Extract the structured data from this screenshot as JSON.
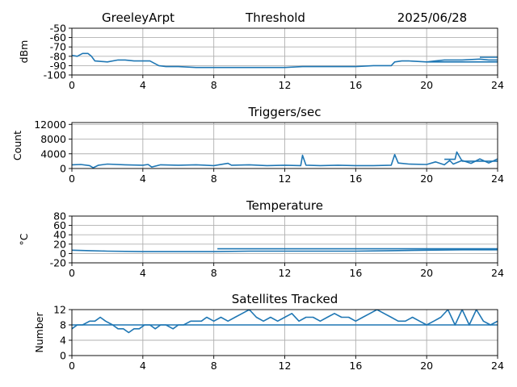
{
  "header": {
    "station": "GreeleyArpt",
    "plot_name": "Threshold",
    "date": "2025/06/28"
  },
  "chart_data": [
    {
      "id": "threshold",
      "type": "line",
      "title": "",
      "xlabel": "",
      "ylabel": "dBm",
      "xlim": [
        0,
        24
      ],
      "ylim": [
        -100,
        -50
      ],
      "xticks": [
        0,
        4,
        8,
        12,
        16,
        20,
        24
      ],
      "yticks": [
        -100,
        -90,
        -80,
        -70,
        -60,
        -50
      ],
      "grid": true,
      "series": [
        {
          "x": [
            0,
            0.3,
            0.6,
            0.9,
            1.1,
            1.3,
            2,
            2.6,
            3,
            3.5,
            4,
            4.4,
            4.6,
            4.9,
            5.3,
            6,
            7,
            8,
            10,
            12,
            13,
            14,
            16,
            17,
            18,
            18.2,
            18.6,
            19,
            20,
            20.5,
            21,
            22,
            23,
            23.5,
            24
          ],
          "y": [
            -79,
            -80,
            -77,
            -77,
            -80,
            -85,
            -86,
            -84,
            -84,
            -85,
            -85,
            -85,
            -87,
            -90,
            -91,
            -91,
            -92,
            -92,
            -92,
            -92,
            -91,
            -91,
            -91,
            -90,
            -90,
            -86,
            -85,
            -85,
            -86,
            -85,
            -84,
            -84,
            -83,
            -84,
            -84
          ]
        },
        {
          "x": [
            20,
            21,
            22,
            23,
            24
          ],
          "y": [
            -86,
            -86,
            -86,
            -86,
            -86
          ]
        },
        {
          "x": [
            23,
            23.5,
            24
          ],
          "y": [
            -81,
            -81,
            -81
          ]
        }
      ]
    },
    {
      "id": "triggers",
      "type": "line",
      "title": "Triggers/sec",
      "xlabel": "",
      "ylabel": "Count",
      "xlim": [
        0,
        24
      ],
      "ylim": [
        0,
        12500
      ],
      "xticks": [
        0,
        4,
        8,
        12,
        16,
        20,
        24
      ],
      "yticks": [
        0,
        4000,
        8000,
        12000
      ],
      "grid": true,
      "series": [
        {
          "x": [
            0,
            0.5,
            1,
            1.2,
            1.5,
            2,
            3,
            4,
            4.3,
            4.5,
            5,
            6,
            7,
            8,
            8.8,
            9,
            10,
            11,
            12,
            12.9,
            13,
            13.2,
            14,
            15,
            16,
            17,
            18,
            18.2,
            18.4,
            19,
            20,
            20.5,
            21,
            21.3,
            21.5,
            22,
            22.5,
            23,
            23.5,
            24
          ],
          "y": [
            1000,
            1100,
            800,
            200,
            900,
            1200,
            1000,
            900,
            1100,
            400,
            1000,
            900,
            1000,
            800,
            1400,
            900,
            1000,
            800,
            900,
            800,
            3600,
            900,
            800,
            900,
            800,
            800,
            900,
            3800,
            1500,
            1200,
            1100,
            1800,
            1000,
            2200,
            1200,
            2200,
            1400,
            2600,
            1500,
            2600
          ]
        },
        {
          "x": [
            21,
            21.6,
            21.7,
            22,
            24
          ],
          "y": [
            2500,
            2500,
            4500,
            2000,
            2000
          ]
        }
      ]
    },
    {
      "id": "temperature",
      "type": "line",
      "title": "Temperature",
      "xlabel": "",
      "ylabel": "°C",
      "xlim": [
        0,
        24
      ],
      "ylim": [
        -20,
        80
      ],
      "xticks": [
        0,
        4,
        8,
        12,
        16,
        20,
        24
      ],
      "yticks": [
        -20,
        0,
        20,
        40,
        60,
        80
      ],
      "grid": true,
      "series": [
        {
          "x": [
            0,
            1,
            2,
            4,
            6,
            8,
            10,
            12,
            14,
            16,
            18,
            20,
            22,
            24
          ],
          "y": [
            7,
            6,
            5,
            4,
            4,
            4,
            5,
            5,
            5,
            5,
            6,
            7,
            8,
            8
          ]
        },
        {
          "x": [
            8.2,
            9.2,
            9.6,
            9.9,
            10.2,
            10.5,
            11.8,
            12.2,
            12.6,
            13,
            13.4,
            13.8,
            14.2,
            14.6,
            15,
            20.2,
            20.6,
            21,
            21.4,
            21.8,
            23,
            23.5,
            24
          ],
          "y": [
            10,
            10,
            10,
            10,
            10,
            10,
            10,
            10,
            10,
            10,
            10,
            10,
            10,
            10,
            10,
            10,
            10,
            10,
            10,
            10,
            10,
            10,
            10
          ]
        }
      ]
    },
    {
      "id": "satellites",
      "type": "line",
      "title": "Satellites Tracked",
      "xlabel": "",
      "ylabel": "Number",
      "xlim": [
        0,
        24
      ],
      "ylim": [
        0,
        12
      ],
      "xticks": [
        0,
        4,
        8,
        12,
        16,
        20,
        24
      ],
      "yticks": [
        0,
        4,
        8,
        12
      ],
      "grid": true,
      "series": [
        {
          "x": [
            0,
            0.3,
            0.6,
            1,
            1.3,
            1.6,
            1.9,
            2.3,
            2.6,
            2.9,
            3.2,
            3.5,
            3.8,
            4.1,
            4.4,
            4.7,
            5,
            5.3,
            5.7,
            6,
            6.3,
            6.7,
            7,
            7.3,
            7.6,
            8,
            8.4,
            8.8,
            9.2,
            9.6,
            10,
            10.4,
            10.8,
            11.2,
            11.6,
            12,
            12.4,
            12.8,
            13.2,
            13.6,
            14,
            14.4,
            14.8,
            15.2,
            15.6,
            16,
            16.4,
            16.8,
            17.2,
            17.6,
            18,
            18.4,
            18.8,
            19.2,
            19.6,
            20,
            20.4,
            20.8,
            21.2,
            21.6,
            22,
            22.4,
            22.8,
            23.2,
            23.6,
            24
          ],
          "y": [
            7,
            8,
            8,
            9,
            9,
            10,
            9,
            8,
            7,
            7,
            6,
            7,
            7,
            8,
            8,
            7,
            8,
            8,
            7,
            8,
            8,
            9,
            9,
            9,
            10,
            9,
            10,
            9,
            10,
            11,
            12,
            10,
            9,
            10,
            9,
            10,
            11,
            9,
            10,
            10,
            9,
            10,
            11,
            10,
            10,
            9,
            10,
            11,
            12,
            11,
            10,
            9,
            9,
            10,
            9,
            8,
            9,
            10,
            12,
            8,
            12,
            8,
            12,
            9,
            8,
            9
          ]
        },
        {
          "x": [
            0,
            4,
            8,
            12,
            16,
            20,
            24
          ],
          "y": [
            8,
            8,
            8,
            8,
            8,
            8,
            8
          ]
        }
      ]
    }
  ]
}
